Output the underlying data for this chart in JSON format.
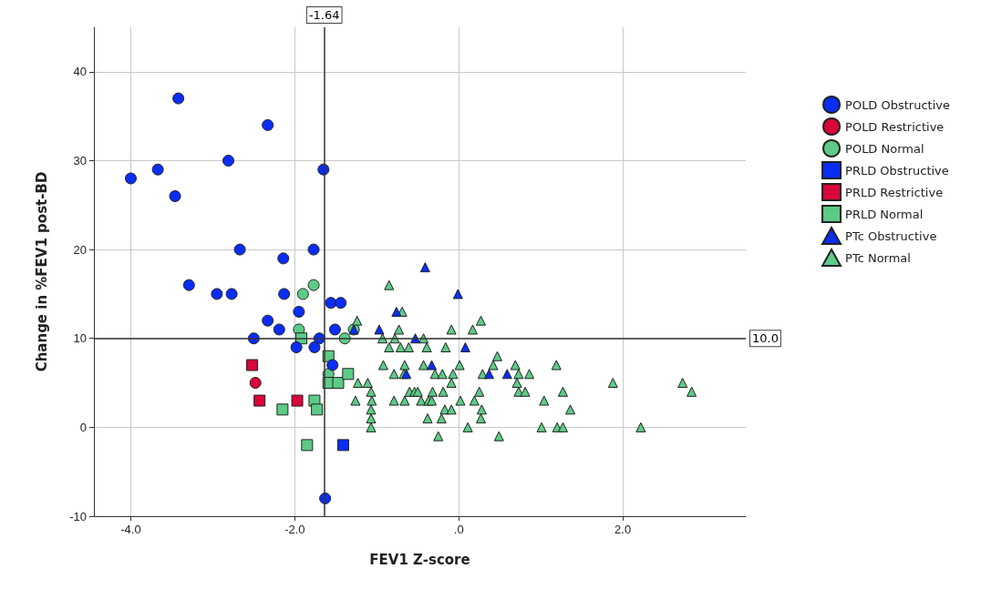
{
  "chart_data": {
    "type": "scatter",
    "xlabel": "FEV1 Z-score",
    "ylabel": "Change in %FEV1 post-BD",
    "xlim": [
      -4.45,
      3.5
    ],
    "ylim": [
      -10,
      45
    ],
    "xticks": [
      {
        "value": -4,
        "label": "-4.0"
      },
      {
        "value": -2,
        "label": "-2.0"
      },
      {
        "value": 0,
        "label": ".0"
      },
      {
        "value": 2,
        "label": "2.0"
      }
    ],
    "yticks": [
      -10,
      0,
      10,
      20,
      30,
      40
    ],
    "grid": true,
    "legend": "right",
    "ref_lines": [
      {
        "axis": "x",
        "value": -1.64,
        "label": "-1.64"
      },
      {
        "axis": "y",
        "value": 10,
        "label": "10.0"
      }
    ],
    "series": [
      {
        "name": "POLD Obstructive",
        "color": "#0a2df5",
        "marker": "circle",
        "x": [
          -3.42,
          -2.33,
          -2.81,
          -1.65,
          -3.67,
          -4.0,
          -3.46,
          -2.67,
          -1.77,
          -2.14,
          -3.29,
          -2.95,
          -2.77,
          -2.13,
          -1.56,
          -1.44,
          -1.95,
          -2.33,
          -2.19,
          -1.51,
          -2.5,
          -1.7,
          -1.98,
          -1.76,
          -1.54,
          -1.63
        ],
        "values": [
          37,
          34,
          30,
          29,
          29,
          28,
          26,
          20,
          20,
          19,
          16,
          15,
          15,
          15,
          14,
          14,
          13,
          12,
          11,
          11,
          10,
          10,
          9,
          9,
          7,
          -8
        ]
      },
      {
        "name": "POLD Restrictive",
        "color": "#d8063a",
        "marker": "circle",
        "x": [
          -2.48
        ],
        "values": [
          5
        ]
      },
      {
        "name": "POLD Normal",
        "color": "#5ccb86",
        "marker": "circle",
        "x": [
          -1.77,
          -1.9,
          -1.95,
          -1.39,
          -1.59,
          -1.28
        ],
        "values": [
          16,
          15,
          11,
          10,
          6,
          11
        ]
      },
      {
        "name": "PRLD Obstructive",
        "color": "#0a2df5",
        "marker": "square",
        "x": [
          -1.41
        ],
        "values": [
          -2
        ]
      },
      {
        "name": "PRLD Restrictive",
        "color": "#d8063a",
        "marker": "square",
        "x": [
          -2.52,
          -2.43,
          -1.97
        ],
        "values": [
          7,
          3,
          3
        ]
      },
      {
        "name": "PRLD Normal",
        "color": "#5ccb86",
        "marker": "square",
        "x": [
          -1.92,
          -1.59,
          -1.59,
          -1.47,
          -1.35,
          -1.76,
          -1.73,
          -2.15,
          -1.85
        ],
        "values": [
          10,
          8,
          5,
          5,
          6,
          3,
          2,
          2,
          -2
        ]
      },
      {
        "name": "PTc Obstructive",
        "color": "#0a2df5",
        "marker": "triangle",
        "x": [
          -0.41,
          -0.01,
          -0.76,
          -0.97,
          -1.28,
          -0.53,
          0.08,
          -0.33,
          -0.64,
          0.37,
          0.59
        ],
        "values": [
          18,
          15,
          13,
          11,
          11,
          10,
          9,
          7,
          6,
          6,
          6
        ]
      },
      {
        "name": "PTc Normal",
        "color": "#5ccb86",
        "marker": "triangle",
        "x": [
          -0.85,
          -0.69,
          -1.24,
          0.27,
          -0.73,
          -0.09,
          0.17,
          -0.93,
          -0.78,
          -0.43,
          -0.85,
          -0.71,
          -0.61,
          -0.39,
          -0.16,
          0.47,
          -0.92,
          -0.66,
          -0.43,
          0.01,
          0.42,
          0.69,
          -0.79,
          -0.67,
          -0.29,
          -0.2,
          -0.07,
          0.29,
          0.73,
          0.86,
          -1.23,
          -1.11,
          -0.09,
          0.71,
          -1.07,
          -0.6,
          -0.54,
          -0.5,
          -0.32,
          -0.19,
          0.25,
          0.73,
          0.81,
          -1.26,
          -1.06,
          -0.79,
          -0.66,
          -0.46,
          -0.37,
          -0.33,
          0.02,
          0.19,
          1.04,
          -1.07,
          -0.17,
          -0.09,
          0.28,
          -1.07,
          -0.38,
          -0.21,
          0.27,
          -1.07,
          0.11,
          1.01,
          -0.25,
          0.49,
          1.19,
          1.88,
          2.73,
          1.27,
          2.84,
          1.36,
          1.2,
          1.27,
          2.22
        ],
        "values": [
          16,
          13,
          12,
          12,
          11,
          11,
          11,
          10,
          10,
          10,
          9,
          9,
          9,
          9,
          9,
          8,
          7,
          7,
          7,
          7,
          7,
          7,
          6,
          6,
          6,
          6,
          6,
          6,
          6,
          6,
          5,
          5,
          5,
          5,
          4,
          4,
          4,
          4,
          4,
          4,
          4,
          4,
          4,
          3,
          3,
          3,
          3,
          3,
          3,
          3,
          3,
          3,
          3,
          2,
          2,
          2,
          2,
          1,
          1,
          1,
          1,
          0,
          0,
          0,
          -1,
          -1,
          7,
          5,
          5,
          4,
          4,
          2,
          0,
          0,
          0
        ]
      }
    ]
  }
}
